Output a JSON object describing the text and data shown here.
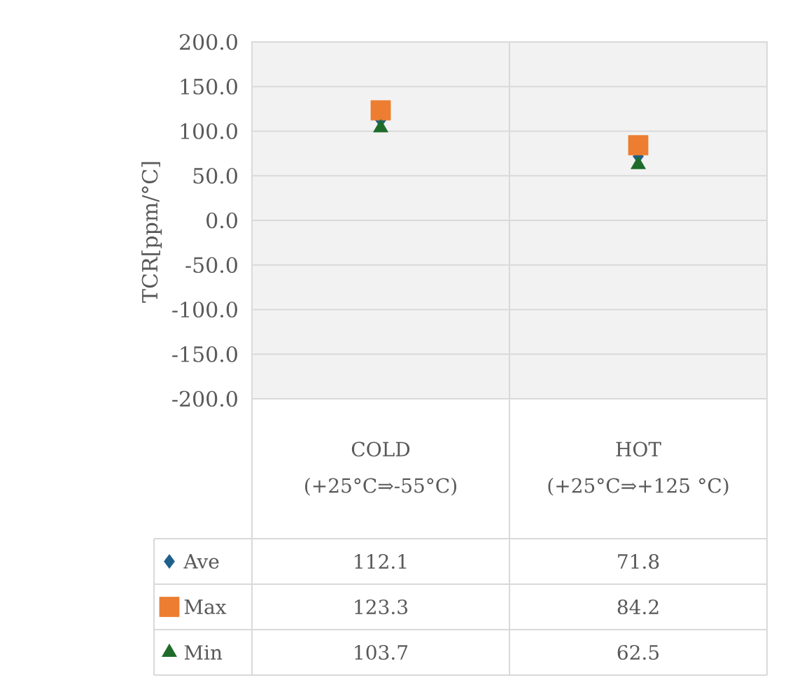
{
  "chart_data": {
    "type": "scatter",
    "ylabel": "TCR[ppm/°C]",
    "categories": [
      "COLD (+25°C⇒-55°C)",
      "HOT (+25°C⇒+125 °C)"
    ],
    "series": [
      {
        "name": "Ave",
        "color": "#1f5f8b",
        "marker": "diamond",
        "values": [
          112.1,
          71.8
        ]
      },
      {
        "name": "Max",
        "color": "#ed7d31",
        "marker": "square",
        "values": [
          123.3,
          84.2
        ]
      },
      {
        "name": "Min",
        "color": "#1e6b2a",
        "marker": "triangle",
        "values": [
          103.7,
          62.5
        ]
      }
    ],
    "ylim": [
      -200,
      200
    ],
    "yticks": [
      {
        "value": -200,
        "label": "-200.0"
      },
      {
        "value": -150,
        "label": "-150.0"
      },
      {
        "value": -100,
        "label": "-100.0"
      },
      {
        "value": -50,
        "label": "-50.0"
      },
      {
        "value": 0,
        "label": "0.0"
      },
      {
        "value": 50,
        "label": "50.0"
      },
      {
        "value": 100,
        "label": "100.0"
      },
      {
        "value": 150,
        "label": "150.0"
      },
      {
        "value": 200,
        "label": "200.0"
      }
    ],
    "grid": "y",
    "legend": "bottom",
    "data_labels": true
  }
}
